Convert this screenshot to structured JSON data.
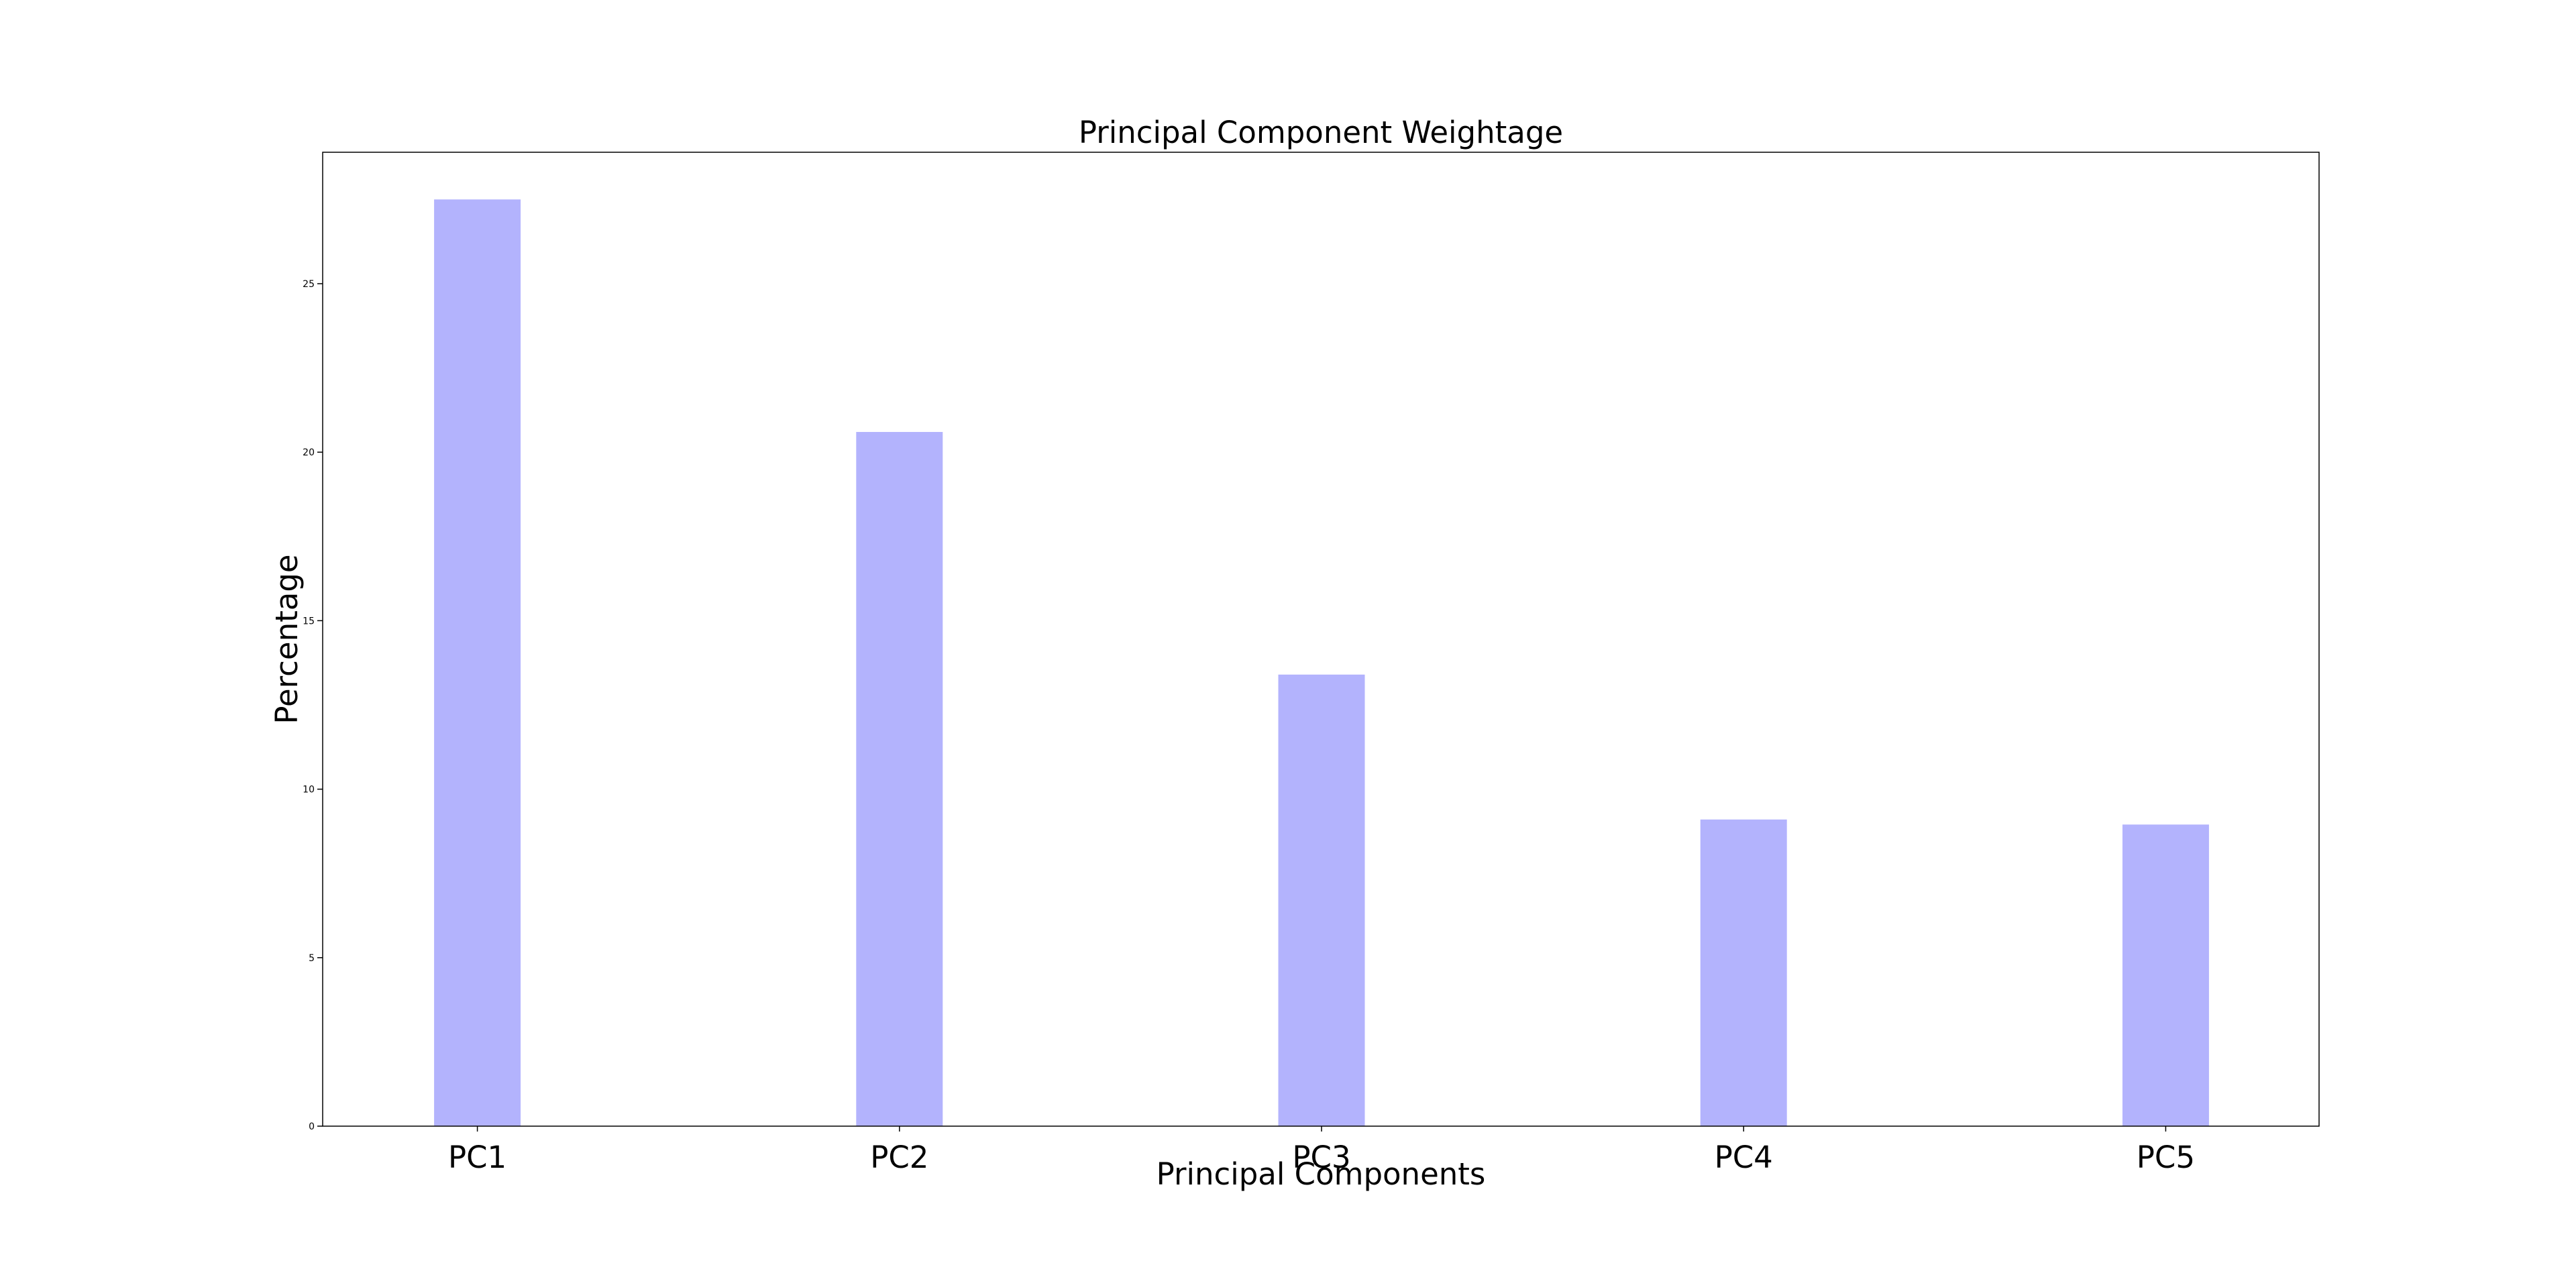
{
  "chart_data": {
    "type": "bar",
    "title": "Principal Component Weightage",
    "xlabel": "Principal Components",
    "ylabel": "Percentage",
    "categories": [
      "PC1",
      "PC2",
      "PC3",
      "PC4",
      "PC5"
    ],
    "values": [
      27.5,
      20.6,
      13.4,
      9.1,
      8.95
    ],
    "ylim": [
      0,
      28.9
    ],
    "yticks": [
      0,
      5,
      10,
      15,
      20,
      25
    ],
    "ytick_labels": [
      "0",
      "5",
      "10",
      "15",
      "20",
      "25"
    ],
    "grid": false,
    "bar_color": "#b3b3fd",
    "axis_color": "#000000"
  }
}
